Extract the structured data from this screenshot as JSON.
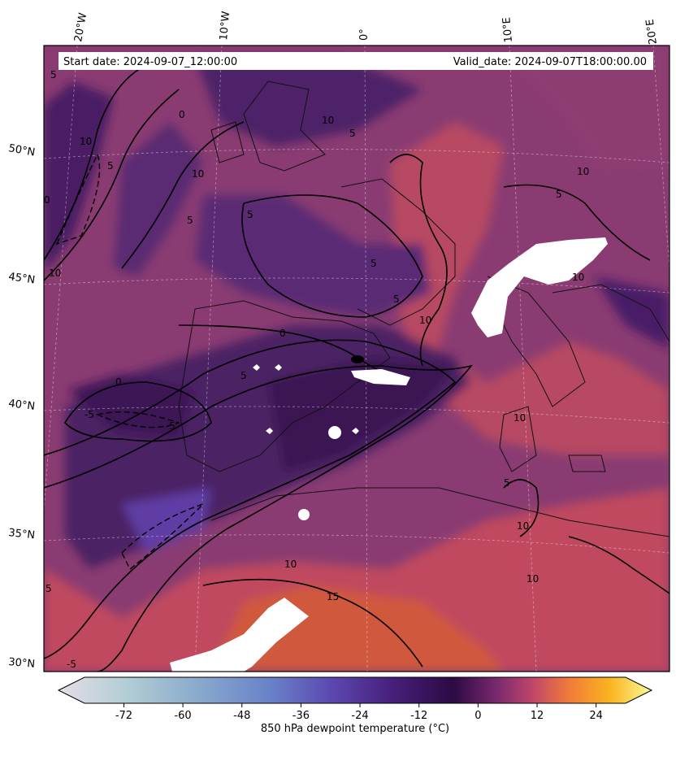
{
  "header": {
    "start_date": "Start date: 2024-09-07_12:00:00",
    "valid_date": "Valid_date: 2024-09-07T18:00:00.00"
  },
  "axes": {
    "lon_labels": [
      "20°W",
      "10°W",
      "0°",
      "10°E",
      "20°E"
    ],
    "lat_labels": [
      "50°N",
      "45°N",
      "40°N",
      "35°N",
      "30°N"
    ]
  },
  "contour_labels": [
    "5",
    "10",
    "0",
    "5",
    "10",
    "10",
    "5",
    "10",
    "5",
    "0",
    "5",
    "10",
    "5",
    "5",
    "10",
    "0",
    "5",
    "10",
    "-5",
    "-5",
    "5",
    "0",
    "10",
    "5",
    "10",
    "10",
    "15",
    "10",
    "5",
    "-5"
  ],
  "colorbar": {
    "ticks": [
      "-72",
      "-60",
      "-48",
      "-36",
      "-24",
      "-12",
      "0",
      "12",
      "24"
    ],
    "label": "850 hPa dewpoint temperature ($^\\circ$C)",
    "label_display": "850 hPa dewpoint temperature (°C)",
    "range": [
      -80,
      30
    ],
    "colormap_stops": [
      "#e4dee6",
      "#b0ccd4",
      "#78a0c8",
      "#6270c4",
      "#5a3ca4",
      "#3c1462",
      "#2e0a48",
      "#7a2a6e",
      "#c0466a",
      "#f07a3a",
      "#fbb420",
      "#fafa96"
    ]
  },
  "map": {
    "background_color": "#8a3c72",
    "dry_color": "#4a1c64",
    "very_dry_color": "#5a3a9a",
    "moist_color": "#c04a5e",
    "gridline_style": "dashed"
  }
}
